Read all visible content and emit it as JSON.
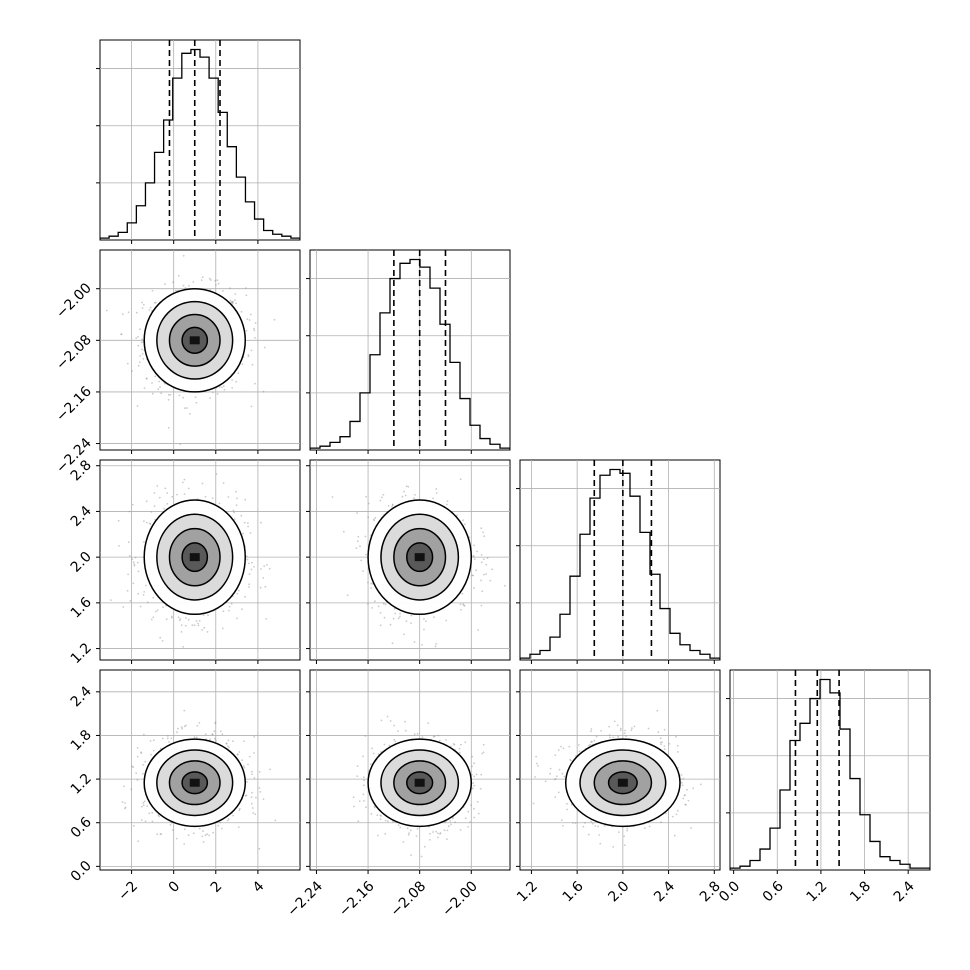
{
  "chart_data": {
    "type": "corner",
    "grid": true,
    "parameters": [
      {
        "range": [
          -3.5,
          6.0
        ],
        "ticks": [
          -2,
          0,
          2,
          4
        ],
        "tick_labels": [
          "−2",
          "0",
          "2",
          "4"
        ],
        "mean": 1.0,
        "std": 1.2,
        "quantiles": [
          -0.2,
          1.0,
          2.2
        ],
        "histogram": [
          1,
          2,
          4,
          9,
          18,
          30,
          46,
          63,
          85,
          98,
          100,
          96,
          85,
          67,
          49,
          33,
          20,
          11,
          5,
          3,
          2,
          1
        ]
      },
      {
        "range": [
          -2.25,
          -1.94
        ],
        "ticks": [
          -2.24,
          -2.16,
          -2.08,
          -2.0
        ],
        "tick_labels": [
          "−2.24",
          "−2.16",
          "−2.08",
          "−2.00"
        ],
        "mean": -2.08,
        "std": 0.04,
        "quantiles": [
          -2.12,
          -2.08,
          -2.04
        ],
        "histogram": [
          1,
          2,
          4,
          7,
          15,
          30,
          50,
          72,
          90,
          98,
          100,
          96,
          85,
          66,
          46,
          27,
          13,
          6,
          3,
          1
        ]
      },
      {
        "range": [
          1.1,
          2.85
        ],
        "ticks": [
          1.2,
          1.6,
          2.0,
          2.4,
          2.8
        ],
        "tick_labels": [
          "1.2",
          "1.6",
          "2.0",
          "2.4",
          "2.8"
        ],
        "mean": 2.0,
        "std": 0.25,
        "quantiles": [
          1.75,
          2.0,
          2.25
        ],
        "histogram": [
          1,
          3,
          5,
          12,
          24,
          44,
          66,
          85,
          97,
          100,
          98,
          86,
          67,
          45,
          27,
          14,
          8,
          5,
          3,
          1
        ]
      },
      {
        "range": [
          -0.05,
          2.7
        ],
        "ticks": [
          0.0,
          0.6,
          1.2,
          1.8,
          2.4
        ],
        "tick_labels": [
          "0.0",
          "0.6",
          "1.2",
          "1.8",
          "2.4"
        ],
        "mean": 1.15,
        "std": 0.3,
        "quantiles": [
          0.85,
          1.15,
          1.45
        ],
        "histogram": [
          1,
          2,
          5,
          11,
          22,
          42,
          68,
          77,
          90,
          100,
          93,
          74,
          48,
          29,
          15,
          7,
          5,
          3,
          1,
          1
        ]
      }
    ],
    "contour_levels_sigma": [
      0.5,
      1.0,
      1.5,
      2.0
    ],
    "scatter_points_per_panel": 900
  }
}
